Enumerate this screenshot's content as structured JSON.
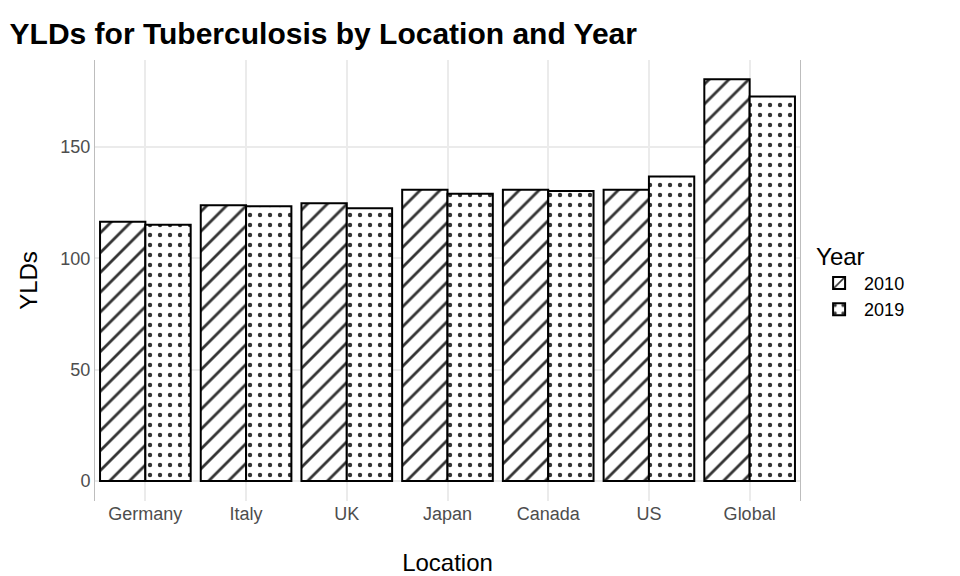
{
  "chart_data": {
    "type": "bar",
    "title": "YLDs for Tuberculosis by Location and Year",
    "x_label": "Location",
    "y_label": "YLDs",
    "legend_title": "Year",
    "categories": [
      "Germany",
      "Italy",
      "UK",
      "Japan",
      "Canada",
      "US",
      "Global"
    ],
    "series": [
      {
        "name": "2010",
        "color": "#ffffff",
        "marker": "hatch",
        "values": [
          116.4,
          123.8,
          124.7,
          130.7,
          130.7,
          130.7,
          180.4
        ]
      },
      {
        "name": "2019",
        "color": "#ffffff",
        "marker": "dots",
        "values": [
          115.0,
          123.3,
          122.4,
          128.9,
          130.2,
          136.7,
          172.6
        ]
      }
    ],
    "ylim": [
      -9,
      189
    ],
    "yticks": [
      0,
      50,
      100,
      150
    ],
    "grid": true,
    "legend": "right"
  }
}
